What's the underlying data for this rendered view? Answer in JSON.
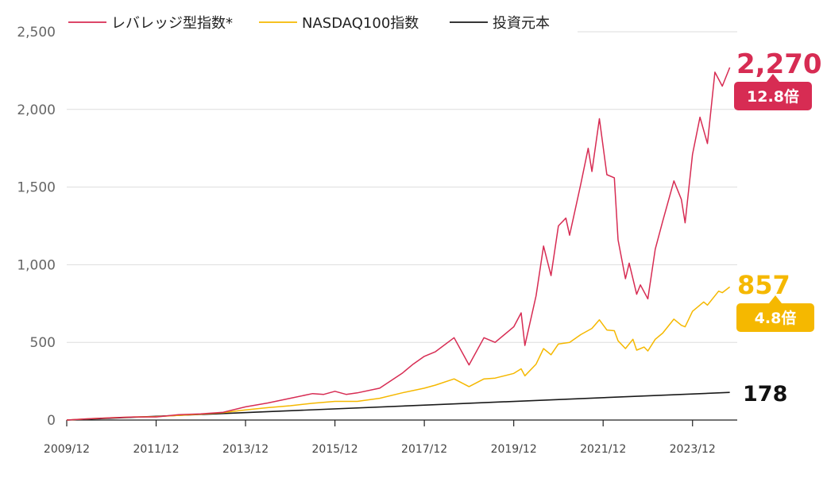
{
  "chart_data": {
    "type": "line",
    "xlim": [
      "2009-12",
      "2024-12"
    ],
    "ylim": [
      0,
      2500
    ],
    "y_ticks": [
      0,
      500,
      1000,
      1500,
      2000,
      2500
    ],
    "y_tick_labels": [
      "0",
      "500",
      "1,000",
      "1,500",
      "2,000",
      "2,500"
    ],
    "x_ticks": [
      "2009-12",
      "2011-12",
      "2013-12",
      "2015-12",
      "2017-12",
      "2019-12",
      "2021-12",
      "2023-12"
    ],
    "x_tick_labels": [
      "2009/12",
      "2011/12",
      "2013/12",
      "2015/12",
      "2017/12",
      "2019/12",
      "2021/12",
      "2023/12"
    ],
    "grid": true,
    "legend_position": "top",
    "series": [
      {
        "name": "レバレッジ型指数*",
        "color": "#d72c53",
        "points": [
          [
            "2009-12",
            0
          ],
          [
            "2010-06",
            8
          ],
          [
            "2010-12",
            15
          ],
          [
            "2011-06",
            20
          ],
          [
            "2011-12",
            20
          ],
          [
            "2012-06",
            35
          ],
          [
            "2012-12",
            40
          ],
          [
            "2013-06",
            50
          ],
          [
            "2013-12",
            85
          ],
          [
            "2014-06",
            110
          ],
          [
            "2014-12",
            140
          ],
          [
            "2015-06",
            170
          ],
          [
            "2015-09",
            165
          ],
          [
            "2015-12",
            185
          ],
          [
            "2016-03",
            165
          ],
          [
            "2016-06",
            175
          ],
          [
            "2016-12",
            205
          ],
          [
            "2017-06",
            300
          ],
          [
            "2017-09",
            360
          ],
          [
            "2017-12",
            410
          ],
          [
            "2018-03",
            440
          ],
          [
            "2018-08",
            530
          ],
          [
            "2018-12",
            355
          ],
          [
            "2019-04",
            530
          ],
          [
            "2019-07",
            500
          ],
          [
            "2019-12",
            600
          ],
          [
            "2020-02",
            690
          ],
          [
            "2020-03",
            480
          ],
          [
            "2020-06",
            800
          ],
          [
            "2020-08",
            1120
          ],
          [
            "2020-10",
            930
          ],
          [
            "2020-12",
            1250
          ],
          [
            "2021-02",
            1300
          ],
          [
            "2021-03",
            1190
          ],
          [
            "2021-06",
            1520
          ],
          [
            "2021-08",
            1750
          ],
          [
            "2021-09",
            1600
          ],
          [
            "2021-11",
            1940
          ],
          [
            "2022-01",
            1580
          ],
          [
            "2022-03",
            1560
          ],
          [
            "2022-04",
            1160
          ],
          [
            "2022-06",
            910
          ],
          [
            "2022-07",
            1010
          ],
          [
            "2022-09",
            810
          ],
          [
            "2022-10",
            870
          ],
          [
            "2022-12",
            780
          ],
          [
            "2023-02",
            1100
          ],
          [
            "2023-04",
            1280
          ],
          [
            "2023-07",
            1540
          ],
          [
            "2023-09",
            1420
          ],
          [
            "2023-10",
            1270
          ],
          [
            "2023-12",
            1710
          ],
          [
            "2024-02",
            1950
          ],
          [
            "2024-04",
            1780
          ],
          [
            "2024-06",
            2240
          ],
          [
            "2024-08",
            2150
          ],
          [
            "2024-10",
            2270
          ]
        ],
        "end_value_label": "2,270",
        "multiple_label": "12.8倍"
      },
      {
        "name": "NASDAQ100指数",
        "color": "#f5b800",
        "points": [
          [
            "2009-12",
            0
          ],
          [
            "2010-06",
            8
          ],
          [
            "2010-12",
            15
          ],
          [
            "2011-06",
            20
          ],
          [
            "2011-12",
            22
          ],
          [
            "2012-06",
            30
          ],
          [
            "2012-12",
            38
          ],
          [
            "2013-06",
            48
          ],
          [
            "2013-12",
            65
          ],
          [
            "2014-06",
            80
          ],
          [
            "2014-12",
            92
          ],
          [
            "2015-06",
            108
          ],
          [
            "2015-12",
            120
          ],
          [
            "2016-06",
            120
          ],
          [
            "2016-12",
            140
          ],
          [
            "2017-06",
            175
          ],
          [
            "2017-12",
            205
          ],
          [
            "2018-03",
            225
          ],
          [
            "2018-08",
            265
          ],
          [
            "2018-12",
            215
          ],
          [
            "2019-04",
            265
          ],
          [
            "2019-07",
            270
          ],
          [
            "2019-12",
            300
          ],
          [
            "2020-02",
            330
          ],
          [
            "2020-03",
            285
          ],
          [
            "2020-06",
            360
          ],
          [
            "2020-08",
            460
          ],
          [
            "2020-10",
            420
          ],
          [
            "2020-12",
            490
          ],
          [
            "2021-03",
            500
          ],
          [
            "2021-06",
            550
          ],
          [
            "2021-09",
            590
          ],
          [
            "2021-11",
            645
          ],
          [
            "2022-01",
            580
          ],
          [
            "2022-03",
            575
          ],
          [
            "2022-04",
            510
          ],
          [
            "2022-06",
            460
          ],
          [
            "2022-08",
            520
          ],
          [
            "2022-09",
            450
          ],
          [
            "2022-11",
            470
          ],
          [
            "2022-12",
            445
          ],
          [
            "2023-02",
            520
          ],
          [
            "2023-04",
            560
          ],
          [
            "2023-07",
            650
          ],
          [
            "2023-09",
            610
          ],
          [
            "2023-10",
            600
          ],
          [
            "2023-12",
            700
          ],
          [
            "2024-03",
            760
          ],
          [
            "2024-04",
            740
          ],
          [
            "2024-07",
            830
          ],
          [
            "2024-08",
            820
          ],
          [
            "2024-10",
            857
          ]
        ],
        "end_value_label": "857",
        "multiple_label": "4.8倍"
      },
      {
        "name": "投資元本",
        "color": "#1a1a1a",
        "points": [
          [
            "2009-12",
            0
          ],
          [
            "2024-10",
            178
          ]
        ],
        "end_value_label": "178"
      }
    ]
  }
}
